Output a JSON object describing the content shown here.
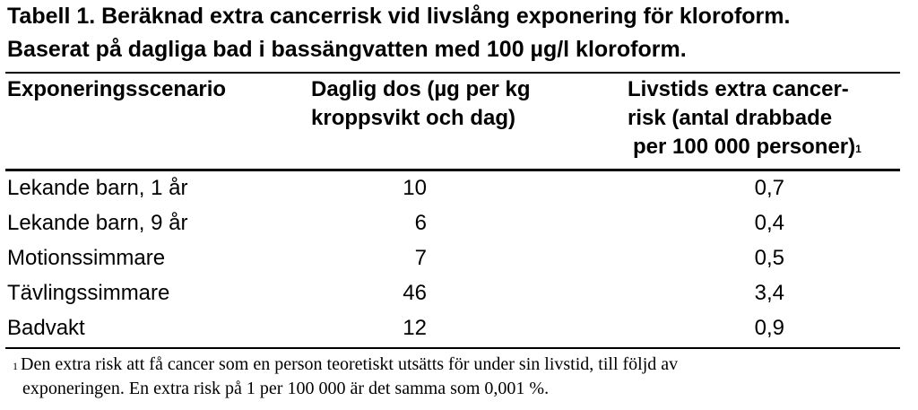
{
  "title": {
    "line1": "Tabell 1. Beräknad extra cancerrisk vid livslång exponering för kloroform.",
    "line2": "Baserat på dagliga bad i bassängvatten med 100 µg/l kloroform."
  },
  "headers": {
    "scenario": "Exponeringsscenario",
    "dose_line1": "Daglig dos (µg per kg",
    "dose_line2": "kroppsvikt och dag)",
    "risk_line1": "Livstids extra cancer-",
    "risk_line2": "risk (antal drabbade",
    "risk_line3": "per 100 000 personer)",
    "risk_footnote_mark": "1"
  },
  "rows": [
    {
      "scenario": "Lekande barn, 1 år",
      "dose": "10",
      "risk": "0,7"
    },
    {
      "scenario": "Lekande barn, 9 år",
      "dose": "6",
      "risk": "0,4"
    },
    {
      "scenario": "Motionssimmare",
      "dose": "7",
      "risk": "0,5"
    },
    {
      "scenario": "Tävlingssimmare",
      "dose": "46",
      "risk": "3,4"
    },
    {
      "scenario": "Badvakt",
      "dose": "12",
      "risk": "0,9"
    }
  ],
  "footnote": {
    "mark": "1",
    "line1": "Den extra risk att få cancer som en person teoretiskt utsätts för under sin livstid, till följd av",
    "line2": "exponeringen. En extra risk på 1 per 100 000 är det samma som 0,001 %."
  }
}
